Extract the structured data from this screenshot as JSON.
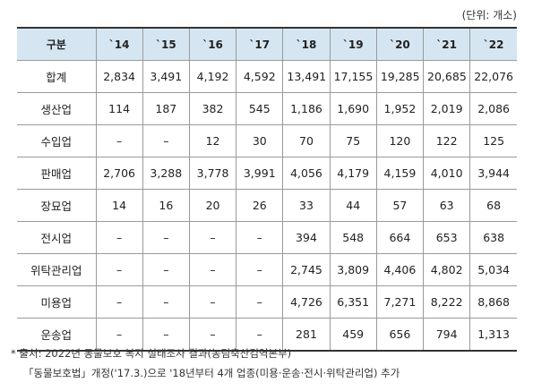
{
  "unit_label": "(단위: 개소)",
  "table": {
    "headers": [
      "구분",
      "`14",
      "`15",
      "`16",
      "`17",
      "`18",
      "`19",
      "`20",
      "`21",
      "`22"
    ],
    "rows": [
      [
        "합계",
        "2,834",
        "3,491",
        "4,192",
        "4,592",
        "13,491",
        "17,155",
        "19,285",
        "20,685",
        "22,076"
      ],
      [
        "생산업",
        "114",
        "187",
        "382",
        "545",
        "1,186",
        "1,690",
        "1,952",
        "2,019",
        "2,086"
      ],
      [
        "수입업",
        "–",
        "–",
        "12",
        "30",
        "70",
        "75",
        "120",
        "122",
        "125"
      ],
      [
        "판매업",
        "2,706",
        "3,288",
        "3,778",
        "3,991",
        "4,056",
        "4,179",
        "4,159",
        "4,010",
        "3,944"
      ],
      [
        "장묘업",
        "14",
        "16",
        "20",
        "26",
        "33",
        "44",
        "57",
        "63",
        "68"
      ],
      [
        "전시업",
        "–",
        "–",
        "–",
        "–",
        "394",
        "548",
        "664",
        "653",
        "638"
      ],
      [
        "위탁관리업",
        "–",
        "–",
        "–",
        "–",
        "2,745",
        "3,809",
        "4,406",
        "4,802",
        "5,034"
      ],
      [
        "미용업",
        "–",
        "–",
        "–",
        "–",
        "4,726",
        "6,351",
        "7,271",
        "8,222",
        "8,868"
      ],
      [
        "운송업",
        "–",
        "–",
        "–",
        "–",
        "281",
        "459",
        "656",
        "794",
        "1,313"
      ]
    ]
  },
  "notes": {
    "line1": "* 출처: 2022년 동물보호 복지 실태조사 결과(농림축산검역본부)",
    "line2": "「동물보호법」개정('17.3.)으로 '18년부터 4개 업종(미용·운송·전시·위탁관리업) 추가"
  }
}
